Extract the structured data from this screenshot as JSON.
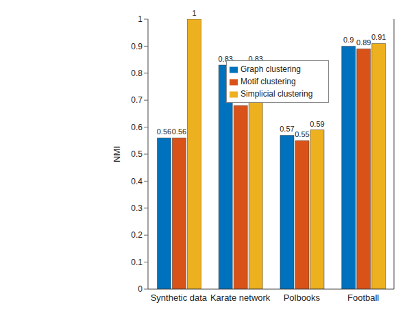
{
  "chart_data": {
    "type": "bar",
    "y_label": "NMI",
    "categories": [
      "Synthetic data",
      "Karate network",
      "Polbooks",
      "Football"
    ],
    "series": [
      {
        "name": "Graph clustering",
        "color": "#0072BD",
        "values": [
          0.56,
          0.83,
          0.57,
          0.9
        ]
      },
      {
        "name": "Motif clustering",
        "color": "#D95319",
        "values": [
          0.56,
          0.68,
          0.55,
          0.89
        ]
      },
      {
        "name": "Simplicial clustering",
        "color": "#EDB120",
        "values": [
          1,
          0.83,
          0.59,
          0.91
        ]
      }
    ],
    "ylim": [
      0,
      1
    ],
    "yticks": [
      0,
      0.1,
      0.2,
      0.3,
      0.4,
      0.5,
      0.6,
      0.7,
      0.8,
      0.9,
      1
    ],
    "grid": false,
    "legend": "upper right",
    "data_labels": true
  }
}
